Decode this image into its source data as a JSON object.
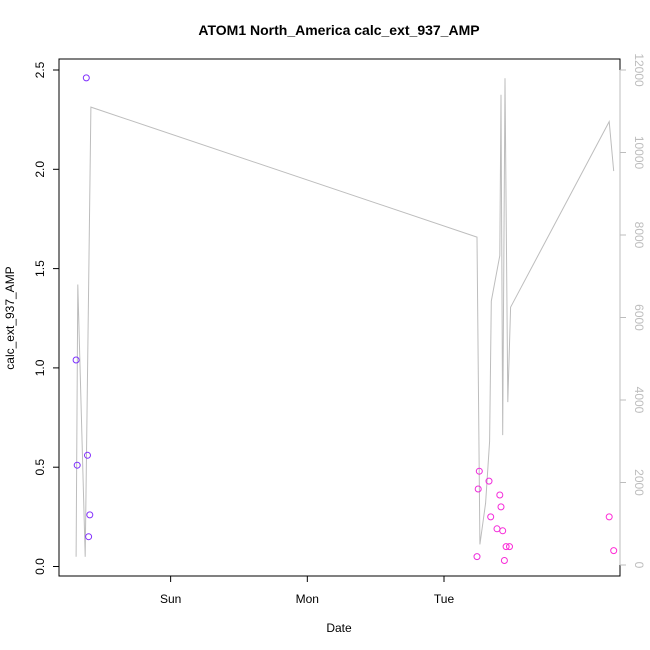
{
  "chart_data": {
    "type": "scatter",
    "title": "ATOM1 North_America calc_ext_937_AMP",
    "xlabel": "Date",
    "ylabel": "calc_ext_937_AMP",
    "x_ticks": [
      "Sun",
      "Mon",
      "Tue"
    ],
    "y_left_ticks": [
      "0.0",
      "0.5",
      "1.0",
      "1.5",
      "2.0",
      "2.5"
    ],
    "y_right_ticks": [
      "0",
      "2000",
      "4000",
      "6000",
      "8000",
      "10000",
      "12000"
    ],
    "ylim_left": [
      0,
      2.5
    ],
    "ylim_right": [
      0,
      12000
    ],
    "xlim_hours": [
      -19.6,
      78.9
    ],
    "line_color": "#bdbdbd",
    "point_colors": [
      "#7b2fff",
      "#ff2bd6"
    ],
    "series": [
      {
        "name": "",
        "kind": "points",
        "axis": "left",
        "points": [
          {
            "x": -16.6,
            "y": 1.04,
            "c": 0.0
          },
          {
            "x": -16.4,
            "y": 0.51,
            "c": 0.02
          },
          {
            "x": -14.8,
            "y": 2.46,
            "c": 0.04
          },
          {
            "x": -14.6,
            "y": 0.56,
            "c": 0.05
          },
          {
            "x": -14.4,
            "y": 0.15,
            "c": 0.06
          },
          {
            "x": -14.2,
            "y": 0.26,
            "c": 0.07
          },
          {
            "x": 53.8,
            "y": 0.05,
            "c": 0.86
          },
          {
            "x": 54.0,
            "y": 0.39,
            "c": 0.87
          },
          {
            "x": 54.2,
            "y": 0.48,
            "c": 0.88
          },
          {
            "x": 55.9,
            "y": 0.43,
            "c": 0.89
          },
          {
            "x": 56.2,
            "y": 0.25,
            "c": 0.9
          },
          {
            "x": 57.3,
            "y": 0.19,
            "c": 0.91
          },
          {
            "x": 57.8,
            "y": 0.36,
            "c": 0.92
          },
          {
            "x": 58.0,
            "y": 0.3,
            "c": 0.93
          },
          {
            "x": 58.3,
            "y": 0.18,
            "c": 0.94
          },
          {
            "x": 58.6,
            "y": 0.03,
            "c": 0.95
          },
          {
            "x": 58.9,
            "y": 0.1,
            "c": 0.96
          },
          {
            "x": 59.5,
            "y": 0.1,
            "c": 0.97
          },
          {
            "x": 77.0,
            "y": 0.25,
            "c": 0.99
          },
          {
            "x": 77.8,
            "y": 0.08,
            "c": 1.0
          }
        ]
      },
      {
        "name": "",
        "kind": "line",
        "axis": "right",
        "points": [
          {
            "x": -16.6,
            "y": 200
          },
          {
            "x": -16.3,
            "y": 6800
          },
          {
            "x": -15.0,
            "y": 200
          },
          {
            "x": -14.0,
            "y": 11100
          },
          {
            "x": 53.8,
            "y": 7950
          },
          {
            "x": 54.3,
            "y": 500
          },
          {
            "x": 55.3,
            "y": 1500
          },
          {
            "x": 56.0,
            "y": 3000
          },
          {
            "x": 56.3,
            "y": 6400
          },
          {
            "x": 57.8,
            "y": 7500
          },
          {
            "x": 58.0,
            "y": 11400
          },
          {
            "x": 58.3,
            "y": 3150
          },
          {
            "x": 58.7,
            "y": 11800
          },
          {
            "x": 59.2,
            "y": 3950
          },
          {
            "x": 59.7,
            "y": 6250
          },
          {
            "x": 77.0,
            "y": 10750
          },
          {
            "x": 77.8,
            "y": 9550
          }
        ]
      }
    ]
  }
}
